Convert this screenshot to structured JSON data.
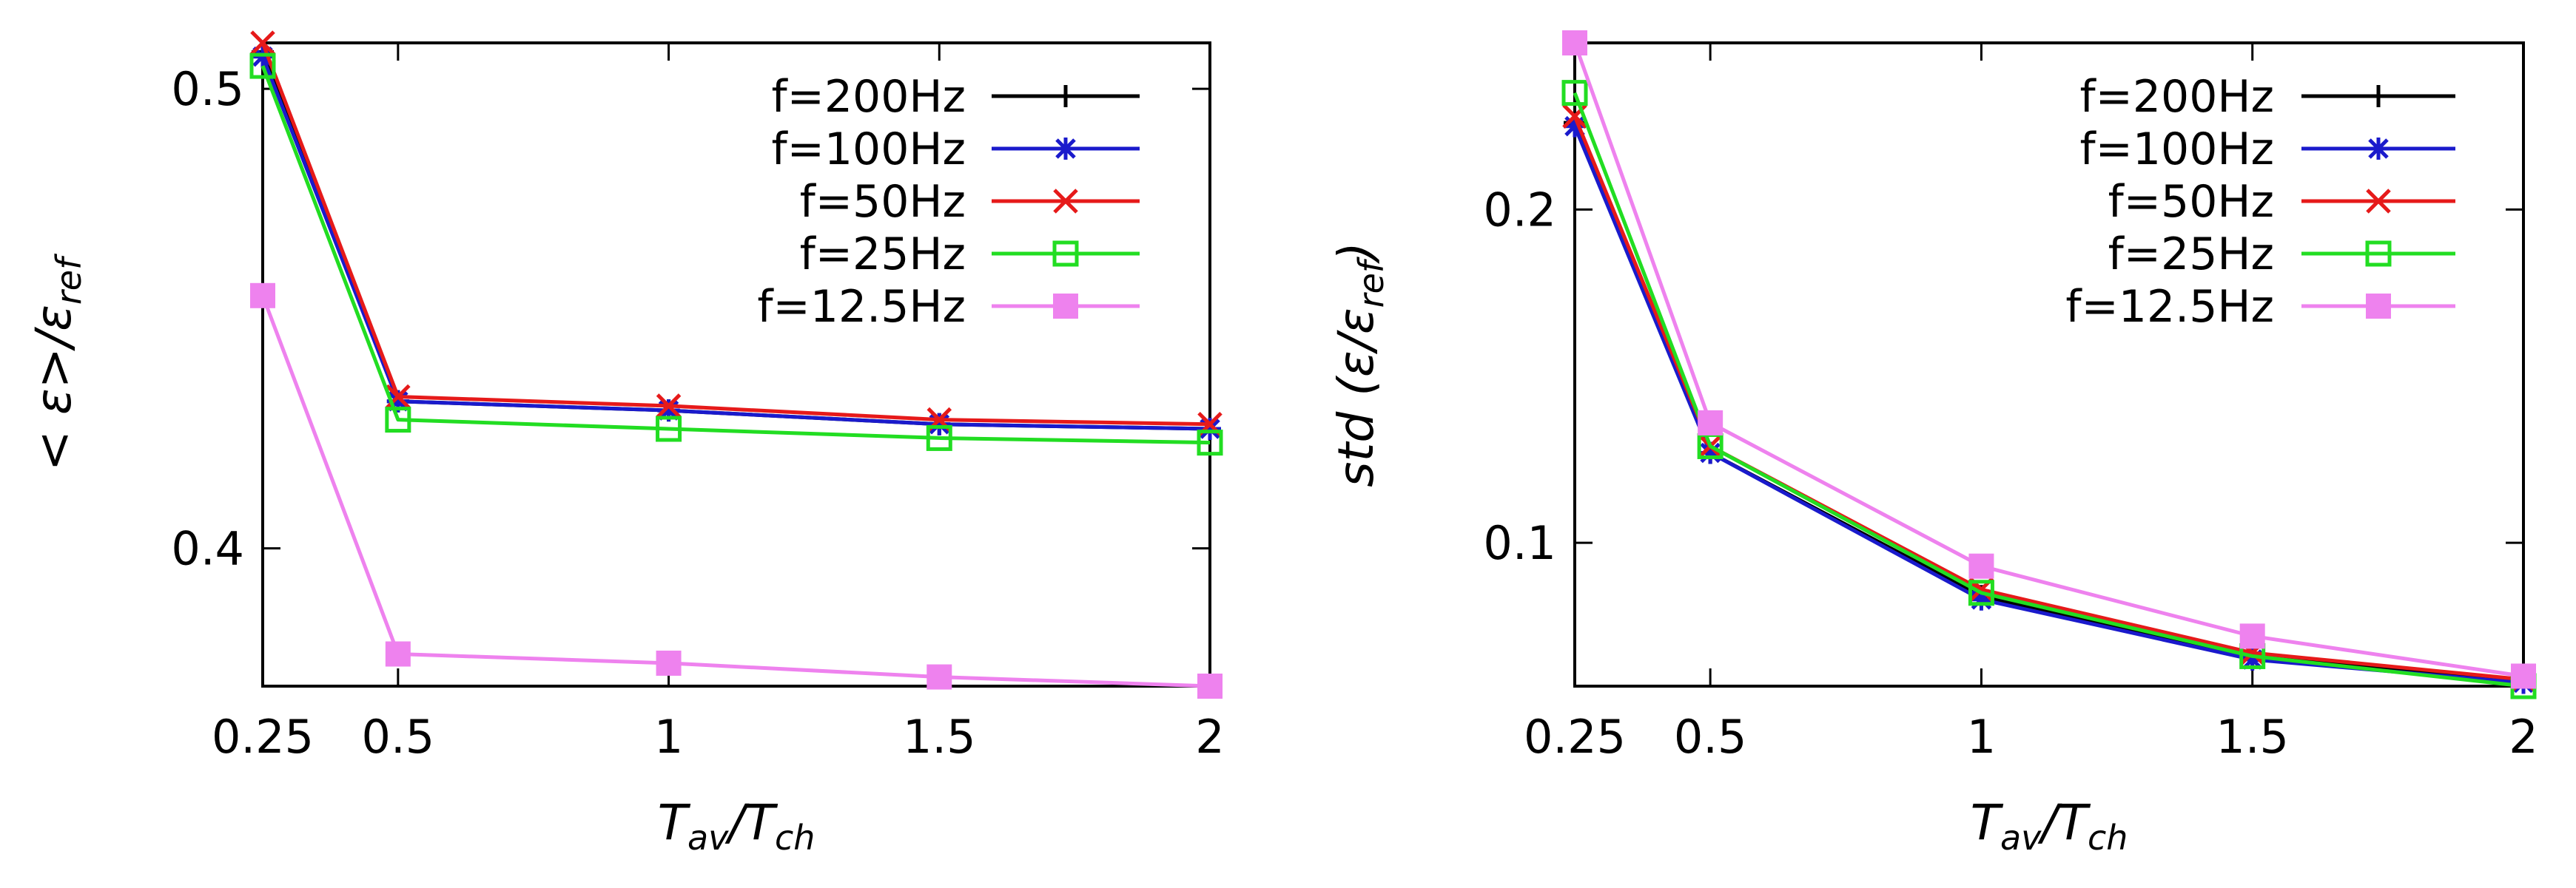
{
  "chart_data": [
    {
      "type": "line",
      "title": "",
      "xlabel": "T_av/T_ch",
      "xlabel_parts": {
        "main1": "T",
        "sub1": "av",
        "sep": "/",
        "main2": "T",
        "sub2": "ch"
      },
      "ylabel": "<ε>/ε_ref",
      "ylabel_parts": {
        "prefix": "< ε>/ε",
        "sub": "ref"
      },
      "x": [
        0.25,
        0.5,
        1,
        1.5,
        2
      ],
      "xlim": [
        0.25,
        2
      ],
      "ylim": [
        0.37,
        0.51
      ],
      "xticks": [
        0.25,
        0.5,
        1,
        1.5,
        2
      ],
      "xtick_labels": [
        "0.25",
        "0.5",
        "1",
        "1.5",
        "2"
      ],
      "yticks": [
        0.4,
        0.5
      ],
      "ytick_labels": [
        "0.4",
        "0.5"
      ],
      "grid": false,
      "legend": "top-right",
      "series": [
        {
          "name": "f=200Hz",
          "color": "#000000",
          "marker": "plus",
          "values": [
            0.508,
            0.432,
            0.43,
            0.427,
            0.426
          ]
        },
        {
          "name": "f=100Hz",
          "color": "#1a1acc",
          "marker": "star",
          "values": [
            0.507,
            0.432,
            0.43,
            0.427,
            0.426
          ]
        },
        {
          "name": "f=50Hz",
          "color": "#e61a1a",
          "marker": "cross",
          "values": [
            0.51,
            0.433,
            0.431,
            0.428,
            0.427
          ]
        },
        {
          "name": "f=25Hz",
          "color": "#22dd22",
          "marker": "open-square",
          "values": [
            0.505,
            0.428,
            0.426,
            0.424,
            0.423
          ]
        },
        {
          "name": "f=12.5Hz",
          "color": "#ee82ee",
          "marker": "filled-square",
          "values": [
            0.455,
            0.377,
            0.375,
            0.372,
            0.37
          ]
        }
      ]
    },
    {
      "type": "line",
      "title": "",
      "xlabel": "T_av/T_ch",
      "xlabel_parts": {
        "main1": "T",
        "sub1": "av",
        "sep": "/",
        "main2": "T",
        "sub2": "ch"
      },
      "ylabel": "std (ε/ε_ref)",
      "ylabel_parts": {
        "prefix": "std (ε/ε",
        "sub": "ref",
        "suffix": ")"
      },
      "x": [
        0.25,
        0.5,
        1,
        1.5,
        2
      ],
      "xlim": [
        0.25,
        2
      ],
      "ylim": [
        0.057,
        0.25
      ],
      "xticks": [
        0.25,
        0.5,
        1,
        1.5,
        2
      ],
      "xtick_labels": [
        "0.25",
        "0.5",
        "1",
        "1.5",
        "2"
      ],
      "yticks": [
        0.1,
        0.2
      ],
      "ytick_labels": [
        "0.1",
        "0.2"
      ],
      "grid": false,
      "legend": "top-right",
      "series": [
        {
          "name": "f=200Hz",
          "color": "#000000",
          "marker": "plus",
          "values": [
            0.226,
            0.127,
            0.084,
            0.066,
            0.058
          ]
        },
        {
          "name": "f=100Hz",
          "color": "#1a1acc",
          "marker": "star",
          "values": [
            0.225,
            0.127,
            0.083,
            0.065,
            0.058
          ]
        },
        {
          "name": "f=50Hz",
          "color": "#e61a1a",
          "marker": "cross",
          "values": [
            0.228,
            0.129,
            0.086,
            0.067,
            0.059
          ]
        },
        {
          "name": "f=25Hz",
          "color": "#22dd22",
          "marker": "open-square",
          "values": [
            0.235,
            0.129,
            0.085,
            0.066,
            0.057
          ]
        },
        {
          "name": "f=12.5Hz",
          "color": "#ee82ee",
          "marker": "filled-square",
          "values": [
            0.25,
            0.136,
            0.093,
            0.072,
            0.06
          ]
        }
      ]
    }
  ]
}
